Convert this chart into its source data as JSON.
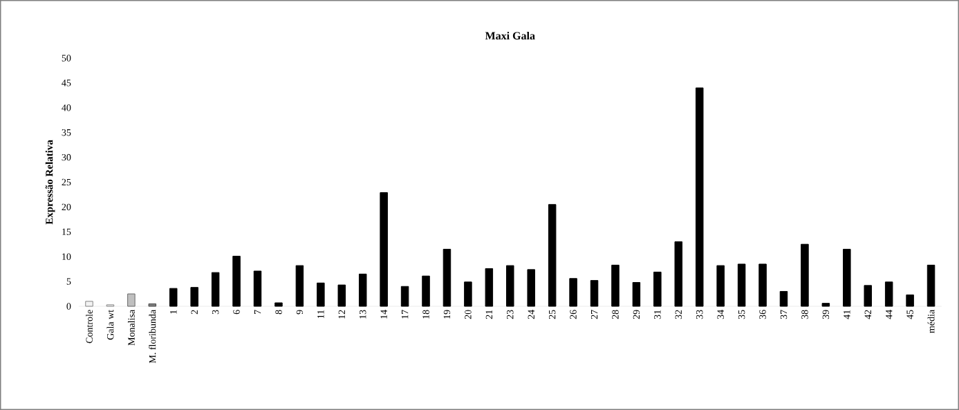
{
  "chart_data": {
    "type": "bar",
    "title": "Maxi Gala",
    "ylabel": "Expressão Relativa",
    "categories": [
      "Controle",
      "Gala wt",
      "Monalisa",
      "M. floribunda",
      "1",
      "2",
      "3",
      "6",
      "7",
      "8",
      "9",
      "11",
      "12",
      "13",
      "14",
      "17",
      "18",
      "19",
      "20",
      "21",
      "23",
      "24",
      "25",
      "26",
      "27",
      "28",
      "29",
      "31",
      "32",
      "33",
      "34",
      "35",
      "36",
      "37",
      "38",
      "39",
      "41",
      "42",
      "44",
      "45",
      "média"
    ],
    "values": [
      1.0,
      0.3,
      2.5,
      0.5,
      3.6,
      3.8,
      6.8,
      10.1,
      7.1,
      0.7,
      8.2,
      4.7,
      4.3,
      6.5,
      22.9,
      4.0,
      6.1,
      11.5,
      4.9,
      7.6,
      8.2,
      7.4,
      20.5,
      5.6,
      5.2,
      8.3,
      4.8,
      6.9,
      13.0,
      44.0,
      8.2,
      8.5,
      8.5,
      3.0,
      12.5,
      0.6,
      11.5,
      4.2,
      4.9,
      2.3,
      8.3
    ],
    "colors": [
      "#f2f2f2",
      "#f2f2f2",
      "#bfbfbf",
      "#7f7f7f",
      "#000000",
      "#000000",
      "#000000",
      "#000000",
      "#000000",
      "#000000",
      "#000000",
      "#000000",
      "#000000",
      "#000000",
      "#000000",
      "#000000",
      "#000000",
      "#000000",
      "#000000",
      "#000000",
      "#000000",
      "#000000",
      "#000000",
      "#000000",
      "#000000",
      "#000000",
      "#000000",
      "#000000",
      "#000000",
      "#000000",
      "#000000",
      "#000000",
      "#000000",
      "#000000",
      "#000000",
      "#000000",
      "#000000",
      "#000000",
      "#000000",
      "#000000",
      "#000000"
    ],
    "ylim": [
      0,
      50
    ],
    "yticks": [
      0,
      5,
      10,
      15,
      20,
      25,
      30,
      35,
      40,
      45,
      50
    ]
  }
}
